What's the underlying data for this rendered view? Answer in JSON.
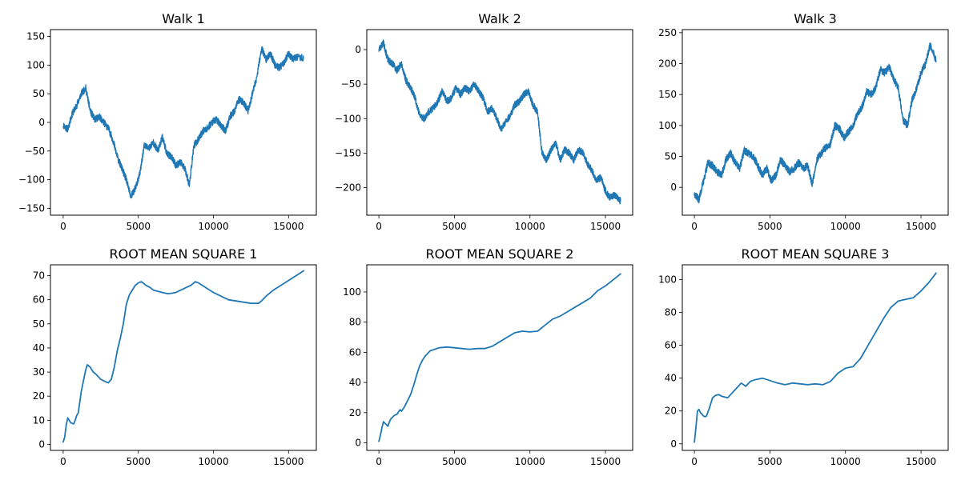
{
  "figure": {
    "background": "#ffffff",
    "line_color": "#1f77b4"
  },
  "chart_data": [
    {
      "type": "line",
      "title": "Walk 1",
      "xlabel": "",
      "ylabel": "",
      "xlim": [
        -850,
        16850
      ],
      "ylim": [
        -162,
        162
      ],
      "xticks": [
        0,
        5000,
        10000,
        15000
      ],
      "xtick_labels": [
        "0",
        "5000",
        "10000",
        "15000"
      ],
      "yticks": [
        -150,
        -100,
        -50,
        0,
        50,
        100,
        150
      ],
      "ytick_labels": [
        "−150",
        "−100",
        "−50",
        "0",
        "50",
        "100",
        "150"
      ],
      "grid": false,
      "noisy": true,
      "noise_amp": 6,
      "seed": 11,
      "x": [
        0,
        300,
        600,
        900,
        1200,
        1500,
        1800,
        2100,
        2400,
        2700,
        3000,
        3300,
        3600,
        3900,
        4200,
        4500,
        4800,
        5100,
        5400,
        5700,
        6000,
        6300,
        6600,
        6900,
        7200,
        7500,
        7800,
        8100,
        8400,
        8700,
        9000,
        9300,
        9600,
        9900,
        10200,
        10500,
        10800,
        11100,
        11400,
        11700,
        12000,
        12300,
        12600,
        12900,
        13200,
        13500,
        13800,
        14100,
        14400,
        14700,
        15000,
        15300,
        15600,
        16000
      ],
      "y": [
        -5,
        -12,
        15,
        30,
        50,
        60,
        20,
        5,
        10,
        0,
        -10,
        -30,
        -60,
        -80,
        -100,
        -130,
        -115,
        -90,
        -40,
        -45,
        -35,
        -50,
        -25,
        -55,
        -60,
        -75,
        -70,
        -80,
        -110,
        -40,
        -30,
        -15,
        -10,
        0,
        5,
        -5,
        -15,
        10,
        20,
        40,
        35,
        20,
        50,
        80,
        130,
        110,
        120,
        100,
        95,
        105,
        120,
        110,
        115,
        112
      ]
    },
    {
      "type": "line",
      "title": "Walk 2",
      "xlabel": "",
      "ylabel": "",
      "xlim": [
        -800,
        16800
      ],
      "ylim": [
        -240,
        29
      ],
      "xticks": [
        0,
        5000,
        10000,
        15000
      ],
      "xtick_labels": [
        "0",
        "5000",
        "10000",
        "15000"
      ],
      "yticks": [
        -200,
        -150,
        -100,
        -50,
        0
      ],
      "ytick_labels": [
        "−200",
        "−150",
        "−100",
        "−50",
        "0"
      ],
      "grid": false,
      "noisy": true,
      "noise_amp": 5,
      "seed": 23,
      "x": [
        0,
        300,
        600,
        900,
        1200,
        1500,
        1800,
        2100,
        2400,
        2700,
        3000,
        3300,
        3600,
        3900,
        4200,
        4500,
        4800,
        5100,
        5400,
        5700,
        6000,
        6300,
        6600,
        6900,
        7200,
        7500,
        7800,
        8100,
        8400,
        8700,
        9000,
        9300,
        9600,
        9900,
        10200,
        10500,
        10800,
        11100,
        11400,
        11700,
        12000,
        12300,
        12600,
        12900,
        13200,
        13500,
        13800,
        14100,
        14400,
        14700,
        15000,
        15300,
        15600,
        16000
      ],
      "y": [
        0,
        10,
        -15,
        -20,
        -30,
        -20,
        -45,
        -55,
        -70,
        -95,
        -100,
        -90,
        -85,
        -75,
        -60,
        -75,
        -70,
        -55,
        -65,
        -55,
        -60,
        -50,
        -60,
        -70,
        -90,
        -85,
        -100,
        -115,
        -105,
        -95,
        -80,
        -75,
        -65,
        -60,
        -80,
        -90,
        -150,
        -160,
        -145,
        -135,
        -160,
        -145,
        -150,
        -160,
        -145,
        -150,
        -165,
        -175,
        -190,
        -185,
        -205,
        -215,
        -210,
        -220
      ]
    },
    {
      "type": "line",
      "title": "Walk 3",
      "xlabel": "",
      "ylabel": "",
      "xlim": [
        -800,
        16800
      ],
      "ylim": [
        -45,
        255
      ],
      "xticks": [
        0,
        5000,
        10000,
        15000
      ],
      "xtick_labels": [
        "0",
        "5000",
        "10000",
        "15000"
      ],
      "yticks": [
        0,
        50,
        100,
        150,
        200,
        250
      ],
      "ytick_labels": [
        "0",
        "50",
        "100",
        "150",
        "200",
        "250"
      ],
      "grid": false,
      "noisy": true,
      "noise_amp": 6,
      "seed": 37,
      "x": [
        0,
        300,
        600,
        900,
        1200,
        1500,
        1800,
        2100,
        2400,
        2700,
        3000,
        3300,
        3600,
        3900,
        4200,
        4500,
        4800,
        5100,
        5400,
        5700,
        6000,
        6300,
        6600,
        6900,
        7200,
        7500,
        7800,
        8100,
        8400,
        8700,
        9000,
        9300,
        9600,
        9900,
        10200,
        10500,
        10800,
        11100,
        11400,
        11700,
        12000,
        12300,
        12600,
        12900,
        13200,
        13500,
        13800,
        14100,
        14400,
        14700,
        15000,
        15300,
        15600,
        16000
      ],
      "y": [
        -10,
        -20,
        10,
        40,
        35,
        25,
        20,
        45,
        55,
        40,
        30,
        60,
        55,
        50,
        35,
        20,
        30,
        10,
        20,
        45,
        35,
        25,
        30,
        40,
        30,
        35,
        5,
        45,
        55,
        65,
        70,
        100,
        95,
        80,
        90,
        100,
        120,
        130,
        155,
        150,
        160,
        190,
        185,
        195,
        175,
        160,
        110,
        100,
        140,
        160,
        185,
        200,
        230,
        205
      ]
    },
    {
      "type": "line",
      "title": "ROOT MEAN SQUARE 1",
      "xlabel": "",
      "ylabel": "",
      "xlim": [
        -850,
        16850
      ],
      "ylim": [
        -2.5,
        74.5
      ],
      "xticks": [
        0,
        5000,
        10000,
        15000
      ],
      "xtick_labels": [
        "0",
        "5000",
        "10000",
        "15000"
      ],
      "yticks": [
        0,
        10,
        20,
        30,
        40,
        50,
        60,
        70
      ],
      "ytick_labels": [
        "0",
        "10",
        "20",
        "30",
        "40",
        "50",
        "60",
        "70"
      ],
      "grid": false,
      "noisy": false,
      "x": [
        0,
        100,
        200,
        300,
        400,
        500,
        700,
        800,
        900,
        1000,
        1200,
        1400,
        1500,
        1600,
        1800,
        2000,
        2200,
        2500,
        2800,
        3000,
        3200,
        3400,
        3600,
        3800,
        4000,
        4200,
        4400,
        4600,
        4800,
        5000,
        5200,
        5500,
        5800,
        6000,
        6300,
        6600,
        7000,
        7500,
        8000,
        8500,
        8800,
        9000,
        9500,
        10000,
        10500,
        11000,
        11500,
        12000,
        12500,
        12800,
        13000,
        13200,
        13500,
        14000,
        14500,
        15000,
        15500,
        16000
      ],
      "y": [
        1,
        3,
        8,
        11,
        10,
        9,
        8.5,
        10,
        12,
        13,
        22,
        28,
        31,
        33,
        32,
        30,
        29,
        27,
        26,
        25.5,
        27,
        32,
        39,
        44,
        50,
        58,
        62,
        64,
        66,
        67,
        67.5,
        66,
        65,
        64,
        63.5,
        63,
        62.5,
        63,
        64.5,
        66,
        67.5,
        67,
        65,
        63,
        61.5,
        60,
        59.5,
        59,
        58.5,
        58.5,
        58.5,
        59.5,
        61.5,
        64,
        66,
        68,
        70,
        72
      ]
    },
    {
      "type": "line",
      "title": "ROOT MEAN SQUARE 2",
      "xlabel": "",
      "ylabel": "",
      "xlim": [
        -800,
        16800
      ],
      "ylim": [
        -5,
        118
      ],
      "xticks": [
        0,
        5000,
        10000,
        15000
      ],
      "xtick_labels": [
        "0",
        "5000",
        "10000",
        "15000"
      ],
      "yticks": [
        0,
        20,
        40,
        60,
        80,
        100
      ],
      "ytick_labels": [
        "0",
        "20",
        "40",
        "60",
        "80",
        "100"
      ],
      "grid": false,
      "noisy": false,
      "x": [
        0,
        100,
        200,
        300,
        400,
        500,
        600,
        700,
        800,
        900,
        1000,
        1200,
        1400,
        1500,
        1700,
        1900,
        2100,
        2300,
        2500,
        2700,
        2900,
        3100,
        3400,
        3700,
        4000,
        4500,
        5000,
        5500,
        6000,
        6500,
        7000,
        7500,
        8000,
        8500,
        9000,
        9500,
        10000,
        10500,
        11000,
        11500,
        12000,
        12500,
        13000,
        13500,
        14000,
        14500,
        15000,
        15500,
        16000
      ],
      "y": [
        1,
        5,
        10,
        14,
        13,
        12,
        11,
        14,
        16,
        17,
        18,
        19,
        22,
        21,
        24,
        28,
        32,
        38,
        45,
        51,
        55,
        58,
        61,
        62,
        63,
        63.5,
        63,
        62.5,
        62,
        62.5,
        62.5,
        64,
        67,
        70,
        73,
        74,
        73.5,
        74,
        78,
        82,
        84,
        87,
        90,
        93,
        96,
        101,
        104,
        108,
        112
      ]
    },
    {
      "type": "line",
      "title": "ROOT MEAN SQUARE 3",
      "xlabel": "",
      "ylabel": "",
      "xlim": [
        -800,
        16800
      ],
      "ylim": [
        -4,
        109
      ],
      "xticks": [
        0,
        5000,
        10000,
        15000
      ],
      "xtick_labels": [
        "0",
        "5000",
        "10000",
        "15000"
      ],
      "yticks": [
        0,
        20,
        40,
        60,
        80,
        100
      ],
      "ytick_labels": [
        "0",
        "20",
        "40",
        "60",
        "80",
        "100"
      ],
      "grid": false,
      "noisy": false,
      "x": [
        0,
        100,
        200,
        300,
        400,
        500,
        600,
        700,
        800,
        1000,
        1200,
        1400,
        1600,
        1800,
        2000,
        2200,
        2500,
        2800,
        3100,
        3400,
        3700,
        4000,
        4500,
        5000,
        5500,
        6000,
        6500,
        7000,
        7500,
        8000,
        8500,
        9000,
        9500,
        10000,
        10500,
        11000,
        11500,
        12000,
        12500,
        13000,
        13500,
        14000,
        14500,
        15000,
        15500,
        16000
      ],
      "y": [
        1,
        10,
        20,
        21,
        19,
        18,
        17,
        16.5,
        17,
        22,
        28,
        29.5,
        30,
        29,
        28.5,
        28,
        31,
        34,
        37,
        35,
        38,
        39,
        40,
        38.5,
        37,
        36,
        37,
        36.5,
        36,
        36.5,
        36,
        38,
        43,
        46,
        47,
        52,
        60,
        68,
        76,
        83,
        87,
        88,
        89,
        93,
        98,
        104
      ]
    }
  ]
}
